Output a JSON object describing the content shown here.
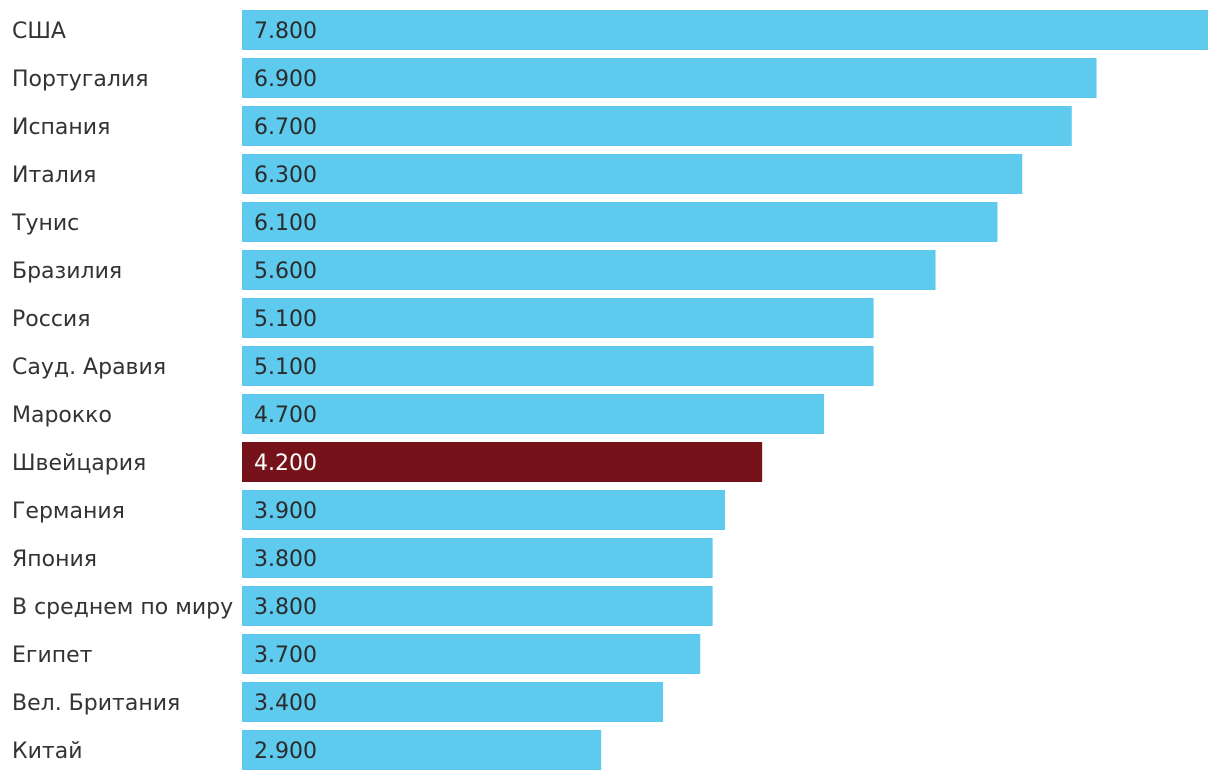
{
  "chart_data": {
    "type": "bar",
    "orientation": "horizontal",
    "categories": [
      "США",
      "Португалия",
      "Испания",
      "Италия",
      "Тунис",
      "Бразилия",
      "Россия",
      "Сауд. Аравия",
      "Марокко",
      "Швейцария",
      "Германия",
      "Япония",
      "В среднем по миру",
      "Египет",
      "Вел. Британия",
      "Китай"
    ],
    "values": [
      7800,
      6900,
      6700,
      6300,
      6100,
      5600,
      5100,
      5100,
      4700,
      4200,
      3900,
      3800,
      3800,
      3700,
      3400,
      2900
    ],
    "value_labels": [
      "7.800",
      "6.900",
      "6.700",
      "6.300",
      "6.100",
      "5.600",
      "5.100",
      "5.100",
      "4.700",
      "4.200",
      "3.900",
      "3.800",
      "3.800",
      "3.700",
      "3.400",
      "2.900"
    ],
    "highlight": "Швейцария",
    "xlim": [
      0,
      7800
    ],
    "grid": false,
    "legend": "none",
    "colors": {
      "bar": "#5ecbee",
      "highlight": "#76131a"
    }
  }
}
